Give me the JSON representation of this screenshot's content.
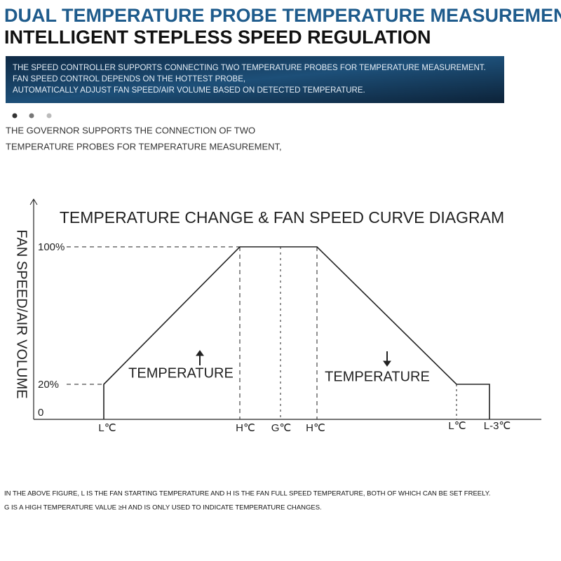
{
  "header": {
    "title_lines": [
      "DUAL TEMPERATURE PROBE TEMPERATURE MEASUREMENT",
      "INTELLIGENT STEPLESS SPEED REGULATION"
    ]
  },
  "banner": {
    "lines": [
      "THE SPEED CONTROLLER SUPPORTS CONNECTING TWO TEMPERATURE PROBES FOR TEMPERATURE MEASUREMENT.",
      "FAN SPEED CONTROL DEPENDS ON THE HOTTEST PROBE,",
      "AUTOMATICALLY ADJUST FAN SPEED/AIR VOLUME BASED ON DETECTED TEMPERATURE."
    ]
  },
  "intro": {
    "lines": [
      "THE GOVERNOR SUPPORTS THE CONNECTION OF TWO",
      "TEMPERATURE PROBES FOR TEMPERATURE MEASUREMENT,"
    ]
  },
  "diagram": {
    "title": "TEMPERATURE CHANGE & FAN SPEED CURVE DIAGRAM",
    "y_axis_label": "FAN SPEED/AIR VOLUME",
    "y_labels": [
      "100%",
      "20%",
      "0"
    ],
    "x_labels": [
      "L℃",
      "H℃",
      "G℃",
      "H℃",
      "L℃",
      "L-3℃"
    ],
    "rising_label": "TEMPERATURE",
    "falling_label": "TEMPERATURE"
  },
  "footnote": {
    "lines": [
      "IN THE ABOVE FIGURE, L IS THE FAN STARTING TEMPERATURE AND H IS THE FAN FULL SPEED TEMPERATURE, BOTH OF WHICH CAN BE SET FREELY.",
      "G IS A HIGH TEMPERATURE VALUE ≥H AND IS ONLY USED TO INDICATE TEMPERATURE CHANGES."
    ]
  }
}
